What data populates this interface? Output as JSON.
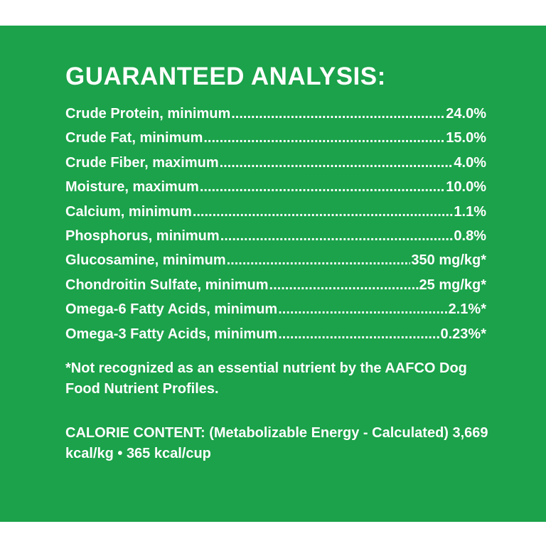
{
  "panel": {
    "background_color": "#1ba24a",
    "text_color": "#ffffff"
  },
  "heading": "GUARANTEED ANALYSIS:",
  "analysis_rows": [
    {
      "label": "Crude Protein, minimum",
      "value": "24.0%"
    },
    {
      "label": "Crude Fat, minimum",
      "value": "15.0%"
    },
    {
      "label": "Crude Fiber, maximum",
      "value": "4.0%"
    },
    {
      "label": "Moisture, maximum",
      "value": "10.0%"
    },
    {
      "label": "Calcium, minimum",
      "value": "1.1%"
    },
    {
      "label": "Phosphorus, minimum",
      "value": "0.8%"
    },
    {
      "label": "Glucosamine, minimum",
      "value": "350 mg/kg*"
    },
    {
      "label": "Chondroitin Sulfate, minimum",
      "value": "25 mg/kg*"
    },
    {
      "label": "Omega-6 Fatty Acids, minimum",
      "value": "2.1%*"
    },
    {
      "label": "Omega-3 Fatty Acids, minimum",
      "value": "0.23%*"
    }
  ],
  "footnote": "*Not recognized as an essential nutrient by the AAFCO Dog Food Nutrient Profiles.",
  "calorie_content": "CALORIE CONTENT: (Metabolizable Energy - Calculated) 3,669 kcal/kg • 365 kcal/cup"
}
